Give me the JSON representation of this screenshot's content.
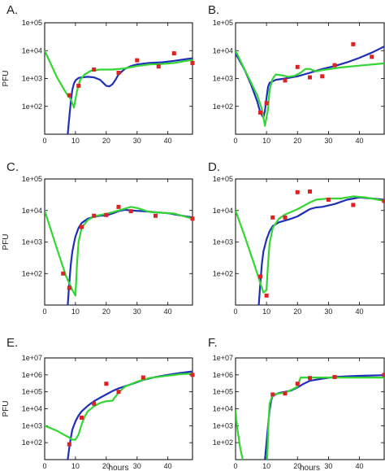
{
  "colors": {
    "model_blue": "#1f2fb8",
    "model_green": "#33d633",
    "data_red": "#dd2222"
  },
  "chart_data": [
    {
      "panel": "A.",
      "type": "line+scatter",
      "ylabel": "PFU",
      "xlabel": "",
      "xlim": [
        0,
        48
      ],
      "xticks": [
        0,
        10,
        20,
        30,
        40
      ],
      "ylog": true,
      "ylim": [
        10,
        100000
      ],
      "yticks": [
        100,
        1000,
        10000,
        100000
      ],
      "ytick_labels": [
        "1e+02",
        "1e+03",
        "1e+04",
        "1e+05"
      ],
      "blue": [
        [
          7.5,
          10
        ],
        [
          8,
          40
        ],
        [
          8.5,
          150
        ],
        [
          9,
          400
        ],
        [
          9.5,
          650
        ],
        [
          10,
          850
        ],
        [
          11,
          1050
        ],
        [
          12,
          1100
        ],
        [
          14,
          1150
        ],
        [
          16,
          1100
        ],
        [
          18,
          900
        ],
        [
          19,
          700
        ],
        [
          20,
          550
        ],
        [
          21,
          520
        ],
        [
          22,
          620
        ],
        [
          23,
          900
        ],
        [
          24,
          1400
        ],
        [
          26,
          2200
        ],
        [
          28,
          2800
        ],
        [
          30,
          3200
        ],
        [
          34,
          3600
        ],
        [
          38,
          3800
        ],
        [
          42,
          4300
        ],
        [
          46,
          5000
        ],
        [
          48,
          5300
        ]
      ],
      "green": [
        [
          0,
          10000
        ],
        [
          4,
          1100
        ],
        [
          7,
          300
        ],
        [
          8.5,
          180
        ],
        [
          9.5,
          90
        ],
        [
          10.5,
          350
        ],
        [
          11.5,
          900
        ],
        [
          13,
          1400
        ],
        [
          15,
          1900
        ],
        [
          18,
          2100
        ],
        [
          22,
          2100
        ],
        [
          26,
          2300
        ],
        [
          30,
          2800
        ],
        [
          34,
          3200
        ],
        [
          38,
          3300
        ],
        [
          42,
          3600
        ],
        [
          46,
          4300
        ],
        [
          48,
          4600
        ]
      ],
      "points": [
        [
          8,
          250
        ],
        [
          11,
          550
        ],
        [
          16,
          2100
        ],
        [
          24,
          1600
        ],
        [
          30,
          4500
        ],
        [
          37,
          2700
        ],
        [
          42,
          8000
        ],
        [
          48,
          3600
        ]
      ]
    },
    {
      "panel": "B.",
      "type": "line+scatter",
      "ylabel": "",
      "xlabel": "",
      "xlim": [
        0,
        48
      ],
      "xticks": [
        0,
        10,
        20,
        30,
        40
      ],
      "ylog": true,
      "ylim": [
        10,
        100000
      ],
      "yticks": [
        100,
        1000,
        10000,
        100000
      ],
      "ytick_labels": [
        "1e+02",
        "1e+03",
        "1e+04",
        "1e+05"
      ],
      "blue": [
        [
          0,
          8000
        ],
        [
          3,
          2000
        ],
        [
          5,
          600
        ],
        [
          7,
          150
        ],
        [
          8,
          60
        ],
        [
          9,
          40
        ],
        [
          9.5,
          70
        ],
        [
          10,
          200
        ],
        [
          10.5,
          500
        ],
        [
          11,
          700
        ],
        [
          13,
          900
        ],
        [
          16,
          1000
        ],
        [
          20,
          1200
        ],
        [
          24,
          1600
        ],
        [
          28,
          2200
        ],
        [
          32,
          2800
        ],
        [
          36,
          3800
        ],
        [
          40,
          5500
        ],
        [
          44,
          8500
        ],
        [
          48,
          14000
        ]
      ],
      "green": [
        [
          0,
          10000
        ],
        [
          4,
          1200
        ],
        [
          7,
          250
        ],
        [
          8.5,
          80
        ],
        [
          9.5,
          20
        ],
        [
          10.5,
          80
        ],
        [
          11,
          400
        ],
        [
          12,
          1000
        ],
        [
          13,
          1400
        ],
        [
          15,
          1300
        ],
        [
          17,
          1150
        ],
        [
          19,
          1250
        ],
        [
          21,
          1600
        ],
        [
          22.5,
          2200
        ],
        [
          24,
          2200
        ],
        [
          26,
          1800
        ],
        [
          28,
          2000
        ],
        [
          34,
          2500
        ],
        [
          40,
          2900
        ],
        [
          48,
          3500
        ]
      ],
      "points": [
        [
          8,
          60
        ],
        [
          10,
          130
        ],
        [
          16,
          850
        ],
        [
          20,
          2600
        ],
        [
          24,
          1100
        ],
        [
          28,
          1200
        ],
        [
          32,
          3000
        ],
        [
          38,
          17000
        ],
        [
          44,
          6000
        ]
      ]
    },
    {
      "panel": "C.",
      "type": "line+scatter",
      "ylabel": "PFU",
      "xlabel": "",
      "xlim": [
        0,
        48
      ],
      "xticks": [
        0,
        10,
        20,
        30,
        40
      ],
      "ylog": true,
      "ylim": [
        10,
        100000
      ],
      "yticks": [
        100,
        1000,
        10000,
        100000
      ],
      "ytick_labels": [
        "1e+02",
        "1e+03",
        "1e+04",
        "1e+05"
      ],
      "blue": [
        [
          7.5,
          10
        ],
        [
          8,
          50
        ],
        [
          8.5,
          200
        ],
        [
          9,
          500
        ],
        [
          9.5,
          900
        ],
        [
          10,
          1500
        ],
        [
          11,
          2800
        ],
        [
          12,
          4000
        ],
        [
          14,
          5500
        ],
        [
          16,
          6300
        ],
        [
          18,
          6800
        ],
        [
          20,
          7000
        ],
        [
          22,
          8000
        ],
        [
          24,
          9500
        ],
        [
          26,
          10500
        ],
        [
          28,
          10000
        ],
        [
          32,
          9500
        ],
        [
          36,
          8800
        ],
        [
          40,
          8200
        ],
        [
          44,
          7000
        ],
        [
          48,
          6000
        ]
      ],
      "green": [
        [
          0,
          10000
        ],
        [
          4,
          600
        ],
        [
          7,
          80
        ],
        [
          9,
          30
        ],
        [
          10,
          20
        ],
        [
          10.5,
          200
        ],
        [
          11,
          1000
        ],
        [
          12,
          2800
        ],
        [
          14,
          5000
        ],
        [
          16,
          6500
        ],
        [
          18,
          7200
        ],
        [
          20,
          7800
        ],
        [
          24,
          10000
        ],
        [
          28,
          13000
        ],
        [
          30,
          12000
        ],
        [
          34,
          9000
        ],
        [
          38,
          8500
        ],
        [
          42,
          8000
        ],
        [
          48,
          5500
        ]
      ],
      "points": [
        [
          6,
          100
        ],
        [
          8,
          35
        ],
        [
          12,
          3000
        ],
        [
          16,
          6800
        ],
        [
          20,
          7200
        ],
        [
          24,
          13000
        ],
        [
          28,
          9500
        ],
        [
          36,
          6800
        ],
        [
          48,
          5500
        ]
      ]
    },
    {
      "panel": "D.",
      "type": "line+scatter",
      "ylabel": "",
      "xlabel": "",
      "xlim": [
        0,
        48
      ],
      "xticks": [
        0,
        10,
        20,
        30,
        40
      ],
      "ylog": true,
      "ylim": [
        10,
        100000
      ],
      "yticks": [
        100,
        1000,
        10000,
        100000
      ],
      "ytick_labels": [
        "1e+02",
        "1e+03",
        "1e+04",
        "1e+05"
      ],
      "blue": [
        [
          7.5,
          10
        ],
        [
          8,
          50
        ],
        [
          8.5,
          200
        ],
        [
          9,
          500
        ],
        [
          10,
          1200
        ],
        [
          11,
          2200
        ],
        [
          12,
          3200
        ],
        [
          14,
          4200
        ],
        [
          16,
          4800
        ],
        [
          18,
          5500
        ],
        [
          20,
          6500
        ],
        [
          22,
          8500
        ],
        [
          24,
          11000
        ],
        [
          26,
          12500
        ],
        [
          28,
          13000
        ],
        [
          32,
          16000
        ],
        [
          36,
          22000
        ],
        [
          40,
          26000
        ],
        [
          44,
          24000
        ],
        [
          48,
          22000
        ]
      ],
      "green": [
        [
          0,
          10000
        ],
        [
          3,
          1500
        ],
        [
          6,
          200
        ],
        [
          8,
          50
        ],
        [
          9,
          25
        ],
        [
          10,
          30
        ],
        [
          10.5,
          200
        ],
        [
          11,
          900
        ],
        [
          12,
          2800
        ],
        [
          14,
          5500
        ],
        [
          16,
          7500
        ],
        [
          18,
          9000
        ],
        [
          20,
          11000
        ],
        [
          22,
          14000
        ],
        [
          24,
          18000
        ],
        [
          26,
          22000
        ],
        [
          30,
          24000
        ],
        [
          34,
          24000
        ],
        [
          38,
          28000
        ],
        [
          42,
          26000
        ],
        [
          46,
          22000
        ],
        [
          48,
          20000
        ]
      ],
      "points": [
        [
          8,
          80
        ],
        [
          10,
          20
        ],
        [
          12,
          6000
        ],
        [
          16,
          6000
        ],
        [
          20,
          38000
        ],
        [
          24,
          40000
        ],
        [
          30,
          22000
        ],
        [
          38,
          15000
        ],
        [
          48,
          20000
        ]
      ]
    },
    {
      "panel": "E.",
      "type": "line+scatter",
      "ylabel": "PFU",
      "xlabel": "hours",
      "xlim": [
        0,
        48
      ],
      "xticks": [
        0,
        10,
        20,
        30,
        40
      ],
      "ylog": true,
      "ylim": [
        10,
        10000000
      ],
      "yticks": [
        100,
        1000,
        10000,
        100000,
        1000000,
        10000000
      ],
      "ytick_labels": [
        "1e+02",
        "1e+03",
        "1e+04",
        "1e+05",
        "1e+06",
        "1e+07"
      ],
      "blue": [
        [
          7.5,
          10
        ],
        [
          8,
          50
        ],
        [
          8.5,
          200
        ],
        [
          9,
          600
        ],
        [
          10,
          1800
        ],
        [
          11,
          4000
        ],
        [
          12,
          7000
        ],
        [
          14,
          15000
        ],
        [
          16,
          28000
        ],
        [
          18,
          45000
        ],
        [
          20,
          70000
        ],
        [
          22,
          110000
        ],
        [
          24,
          160000
        ],
        [
          28,
          280000
        ],
        [
          32,
          500000
        ],
        [
          36,
          750000
        ],
        [
          40,
          1000000
        ],
        [
          44,
          1300000
        ],
        [
          48,
          1600000
        ]
      ],
      "green": [
        [
          0,
          1000
        ],
        [
          4,
          500
        ],
        [
          7,
          250
        ],
        [
          8,
          200
        ],
        [
          9,
          150
        ],
        [
          10,
          150
        ],
        [
          11,
          300
        ],
        [
          12,
          1200
        ],
        [
          13,
          3500
        ],
        [
          14,
          7000
        ],
        [
          16,
          14000
        ],
        [
          18,
          22000
        ],
        [
          20,
          28000
        ],
        [
          22,
          30000
        ],
        [
          24,
          90000
        ],
        [
          26,
          200000
        ],
        [
          30,
          400000
        ],
        [
          34,
          650000
        ],
        [
          40,
          900000
        ],
        [
          44,
          1100000
        ],
        [
          48,
          1200000
        ]
      ],
      "points": [
        [
          8,
          80
        ],
        [
          12,
          3000
        ],
        [
          16,
          20000
        ],
        [
          20,
          300000
        ],
        [
          24,
          100000
        ],
        [
          32,
          700000
        ],
        [
          48,
          1000000
        ]
      ]
    },
    {
      "panel": "F.",
      "type": "line+scatter",
      "ylabel": "",
      "xlabel": "hours",
      "xlim": [
        0,
        48
      ],
      "xticks": [
        0,
        10,
        20,
        30,
        40
      ],
      "ylog": true,
      "ylim": [
        10,
        10000000
      ],
      "yticks": [
        100,
        1000,
        10000,
        100000,
        1000000,
        10000000
      ],
      "ytick_labels": [
        "1e+02",
        "1e+03",
        "1e+04",
        "1e+05",
        "1e+06",
        "1e+07"
      ],
      "blue": [
        [
          9.5,
          10
        ],
        [
          10,
          100
        ],
        [
          10.5,
          1000
        ],
        [
          11,
          8000
        ],
        [
          11.5,
          30000
        ],
        [
          12,
          60000
        ],
        [
          14,
          85000
        ],
        [
          16,
          100000
        ],
        [
          18,
          120000
        ],
        [
          20,
          180000
        ],
        [
          22,
          300000
        ],
        [
          24,
          450000
        ],
        [
          28,
          600000
        ],
        [
          32,
          750000
        ],
        [
          36,
          820000
        ],
        [
          40,
          880000
        ],
        [
          44,
          920000
        ],
        [
          48,
          960000
        ]
      ],
      "green": [
        [
          0,
          8000
        ],
        [
          0.5,
          800
        ],
        [
          1.5,
          50
        ],
        [
          2.3,
          10
        ]
      ],
      "green2": [
        [
          10.2,
          10
        ],
        [
          10.6,
          1000
        ],
        [
          11,
          20000
        ],
        [
          12,
          70000
        ],
        [
          14,
          80000
        ],
        [
          16,
          90000
        ],
        [
          18,
          130000
        ],
        [
          20,
          200000
        ],
        [
          21,
          700000
        ],
        [
          24,
          700000
        ],
        [
          30,
          700000
        ],
        [
          36,
          700000
        ],
        [
          42,
          700000
        ],
        [
          48,
          700000
        ]
      ],
      "points": [
        [
          12,
          70000
        ],
        [
          16,
          80000
        ],
        [
          20,
          300000
        ],
        [
          24,
          650000
        ],
        [
          32,
          750000
        ],
        [
          48,
          1000000
        ]
      ]
    }
  ]
}
